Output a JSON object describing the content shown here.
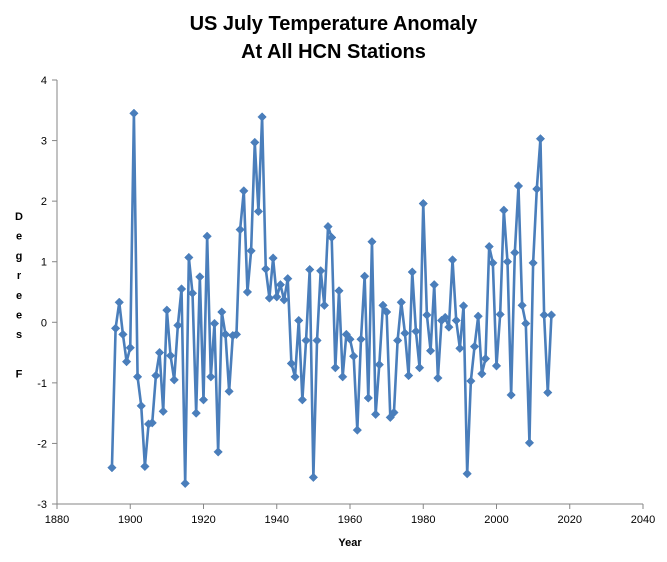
{
  "chart_data": {
    "type": "line",
    "title_line1": "US July Temperature Anomaly",
    "title_line2": "At All HCN Stations",
    "xlabel": "Year",
    "ylabel_letters": [
      "D",
      "e",
      "g",
      "r",
      "e",
      "e",
      "s",
      "",
      "F"
    ],
    "xlim": [
      1880,
      2040
    ],
    "ylim": [
      -3,
      4
    ],
    "x_ticks": [
      1880,
      1900,
      1920,
      1940,
      1960,
      1980,
      2000,
      2020,
      2040
    ],
    "y_ticks": [
      -3,
      -2,
      -1,
      0,
      1,
      2,
      3,
      4
    ],
    "grid": false,
    "marker": "diamond",
    "color": "#4a7ebb",
    "series": [
      {
        "x": [
          1895,
          1896,
          1897,
          1898,
          1899,
          1900,
          1901,
          1902,
          1903,
          1904,
          1905,
          1906,
          1907,
          1908,
          1909,
          1910,
          1911,
          1912,
          1913,
          1914,
          1915,
          1916,
          1917,
          1918,
          1919,
          1920,
          1921,
          1922,
          1923,
          1924,
          1925,
          1926,
          1927,
          1928,
          1929,
          1930,
          1931,
          1932,
          1933,
          1934,
          1935,
          1936,
          1937,
          1938,
          1939,
          1940,
          1941,
          1942,
          1943,
          1944,
          1945,
          1946,
          1947,
          1948,
          1949,
          1950,
          1951,
          1952,
          1953,
          1954,
          1955,
          1956,
          1957,
          1958,
          1959,
          1960,
          1961,
          1962,
          1963,
          1964,
          1965,
          1966,
          1967,
          1968,
          1969,
          1970,
          1971,
          1972,
          1973,
          1974,
          1975,
          1976,
          1977,
          1978,
          1979,
          1980,
          1981,
          1982,
          1983,
          1984,
          1985,
          1986,
          1987,
          1988,
          1989,
          1990,
          1991,
          1992,
          1993,
          1994,
          1995,
          1996,
          1997,
          1998,
          1999,
          2000,
          2001,
          2002,
          2003,
          2004,
          2005,
          2006,
          2007,
          2008,
          2009,
          2010,
          2011,
          2012,
          2013,
          2014,
          2015
        ],
        "values": [
          -2.4,
          -0.1,
          0.33,
          -0.2,
          -0.65,
          -0.42,
          3.45,
          -0.9,
          -1.38,
          -2.38,
          -1.68,
          -1.66,
          -0.88,
          -0.5,
          -1.47,
          0.2,
          -0.55,
          -0.95,
          -0.05,
          0.55,
          -2.66,
          1.07,
          0.48,
          -1.5,
          0.75,
          -1.28,
          1.42,
          -0.9,
          -0.02,
          -2.14,
          0.17,
          -0.2,
          -1.14,
          -0.22,
          -0.2,
          1.53,
          2.17,
          0.5,
          1.18,
          2.97,
          1.83,
          3.39,
          0.88,
          0.4,
          1.06,
          0.42,
          0.62,
          0.37,
          0.72,
          -0.68,
          -0.9,
          0.03,
          -1.28,
          -0.3,
          0.87,
          -2.56,
          -0.3,
          0.85,
          0.28,
          1.58,
          1.4,
          -0.75,
          0.52,
          -0.9,
          -0.2,
          -0.28,
          -0.56,
          -1.78,
          -0.28,
          0.76,
          -1.25,
          1.33,
          -1.52,
          -0.7,
          0.28,
          0.17,
          -1.57,
          -1.49,
          -0.3,
          0.33,
          -0.18,
          -0.88,
          0.83,
          -0.15,
          -0.75,
          1.96,
          0.12,
          -0.47,
          0.62,
          -0.92,
          0.03,
          0.08,
          -0.08,
          1.03,
          0.03,
          -0.43,
          0.27,
          -2.5,
          -0.97,
          -0.4,
          0.1,
          -0.85,
          -0.6,
          1.25,
          0.98,
          -0.72,
          0.13,
          1.85,
          1.0,
          -1.2,
          1.15,
          2.25,
          0.28,
          -0.02,
          -1.99,
          0.98,
          2.2,
          3.03,
          0.12,
          -1.16,
          0.12
        ]
      }
    ]
  }
}
